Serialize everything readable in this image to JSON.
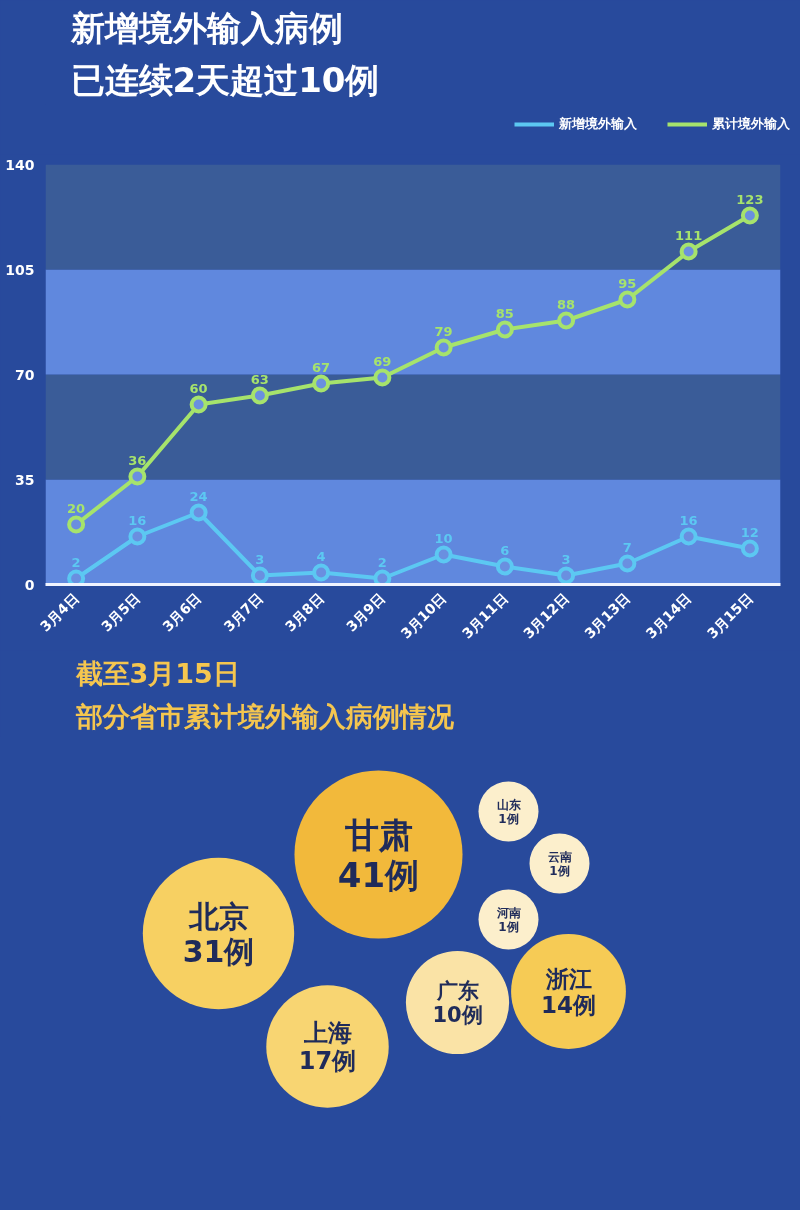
{
  "chart_data": [
    {
      "type": "line",
      "title": "新增境外输入病例",
      "subtitle": "已连续2天超过10例",
      "categories": [
        "3月4日",
        "3月5日",
        "3月6日",
        "3月7日",
        "3月8日",
        "3月9日",
        "3月10日",
        "3月11日",
        "3月12日",
        "3月13日",
        "3月14日",
        "3月15日"
      ],
      "series": [
        {
          "name": "新增境外输入",
          "color": "#5cc8f2",
          "values": [
            2,
            16,
            24,
            3,
            4,
            2,
            10,
            6,
            3,
            7,
            16,
            12
          ]
        },
        {
          "name": "累计境外输入",
          "color": "#a6e36c",
          "values": [
            20,
            36,
            60,
            63,
            67,
            69,
            79,
            85,
            88,
            95,
            111,
            123
          ]
        }
      ],
      "ylim": [
        0,
        140
      ],
      "yticks": [
        0,
        35,
        70,
        105,
        140
      ],
      "bands": [
        {
          "axis": "y",
          "from": 0,
          "to": 35,
          "color": "#6088de"
        },
        {
          "axis": "y",
          "from": 35,
          "to": 70,
          "color": "#3a5c98"
        },
        {
          "axis": "y",
          "from": 70,
          "to": 105,
          "color": "#6088de"
        },
        {
          "axis": "y",
          "from": 105,
          "to": 140,
          "color": "#3a5c98"
        }
      ],
      "legend": "top right",
      "marker": "circle",
      "line_style": "solid",
      "data_labels": true
    },
    {
      "type": "other",
      "title": "截至3月15日",
      "subtitle": "部分省市累计境外输入病例情况",
      "categories": [
        "甘肃",
        "北京",
        "上海",
        "广东",
        "浙江",
        "山东",
        "云南",
        "河南"
      ],
      "values": [
        41,
        31,
        17,
        10,
        14,
        1,
        1,
        1
      ],
      "value_labels": [
        "41例",
        "31例",
        "17例",
        "10例",
        "14例",
        "1例",
        "1例",
        "1例"
      ],
      "colors": [
        "#f2b93b",
        "#f7d062",
        "#f8d572",
        "#fae3a6",
        "#f6cb55",
        "#fcefcc",
        "#fcefcc",
        "#fcefcc"
      ]
    }
  ]
}
